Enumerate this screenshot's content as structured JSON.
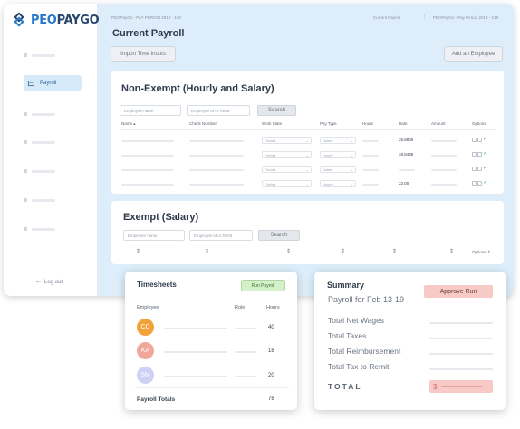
{
  "brand": {
    "peo": "PEO",
    "pay": "PAYGO"
  },
  "sidebar": {
    "active_label": "Payroll",
    "logout_label": "Log out"
  },
  "topbar": {
    "crumb": "PEOPayGo - PAY PERIOD 2013 - 138",
    "current": "Current Payroll",
    "period": "PEOPayGo - Pay Period 2013 - 138"
  },
  "page": {
    "title": "Current Payroll",
    "import_label": "Import Time Inupts",
    "add_employee_label": "Add an Employee"
  },
  "non_exempt": {
    "title": "Non-Exempt (Hourly and Salary)",
    "name_placeholder": "Employee name",
    "refid_placeholder": "Employee Id or RefId",
    "search_label": "Search",
    "columns": [
      "Name",
      "Check Number",
      "Work State",
      "Pay Type",
      "Hours",
      "Rate",
      "Amount",
      "Options"
    ],
    "rows": [
      {
        "state": "Florida",
        "pay_type": "Salary",
        "rate": "25.8805"
      },
      {
        "state": "Florida",
        "pay_type": "Hourly",
        "rate": "28.8438"
      },
      {
        "state": "Florida",
        "pay_type": "Salary",
        "rate": ""
      },
      {
        "state": "Florida",
        "pay_type": "Hourly",
        "rate": "22.00"
      }
    ]
  },
  "exempt": {
    "title": "Exempt (Salary)",
    "name_placeholder": "Employee name",
    "refid_placeholder": "Employee Id or RefId",
    "search_label": "Search",
    "options_label": "Options"
  },
  "timesheets": {
    "title": "Timesheets",
    "run_label": "Run Payroll",
    "col_employee": "Employee",
    "col_role": "Role",
    "col_hours": "Hours",
    "employees": [
      {
        "initials": "CC",
        "hours": "40",
        "color": "#f2a23a"
      },
      {
        "initials": "KA",
        "hours": "18",
        "color": "#f0a79b"
      },
      {
        "initials": "SM",
        "hours": "20",
        "color": "#cfd0f5"
      }
    ],
    "total_label": "Payroll Totals",
    "total_value": "78"
  },
  "summary": {
    "title": "Summary",
    "approve_label": "Approve Run",
    "payroll_for": "Payroll for Feb 13-19",
    "rows": [
      "Total Net Wages",
      "Total Taxes",
      "Total Reimbursement",
      "Total Tax to Remit"
    ],
    "total_label": "TOTAL",
    "currency": "$"
  }
}
